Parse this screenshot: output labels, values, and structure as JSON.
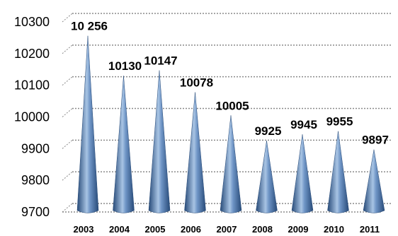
{
  "chart_data": {
    "type": "bar",
    "style": "3d-cone",
    "categories": [
      "2003",
      "2004",
      "2005",
      "2006",
      "2007",
      "2008",
      "2009",
      "2010",
      "2011"
    ],
    "values": [
      10256,
      10130,
      10147,
      10078,
      10005,
      9925,
      9945,
      9955,
      9897
    ],
    "data_labels": [
      "10 256",
      "10130",
      "10147",
      "10078",
      "10005",
      "9925",
      "9945",
      "9955",
      "9897"
    ],
    "yticks": [
      "10300",
      "10200",
      "10100",
      "10000",
      "9900",
      "9800",
      "9700"
    ],
    "ylim": [
      9700,
      10300
    ],
    "grid": true,
    "colors": {
      "bar": "#4a74a8",
      "bar_light": "#a8c4e4",
      "bar_dark": "#274a78",
      "grid": "#8a8a8a"
    }
  }
}
